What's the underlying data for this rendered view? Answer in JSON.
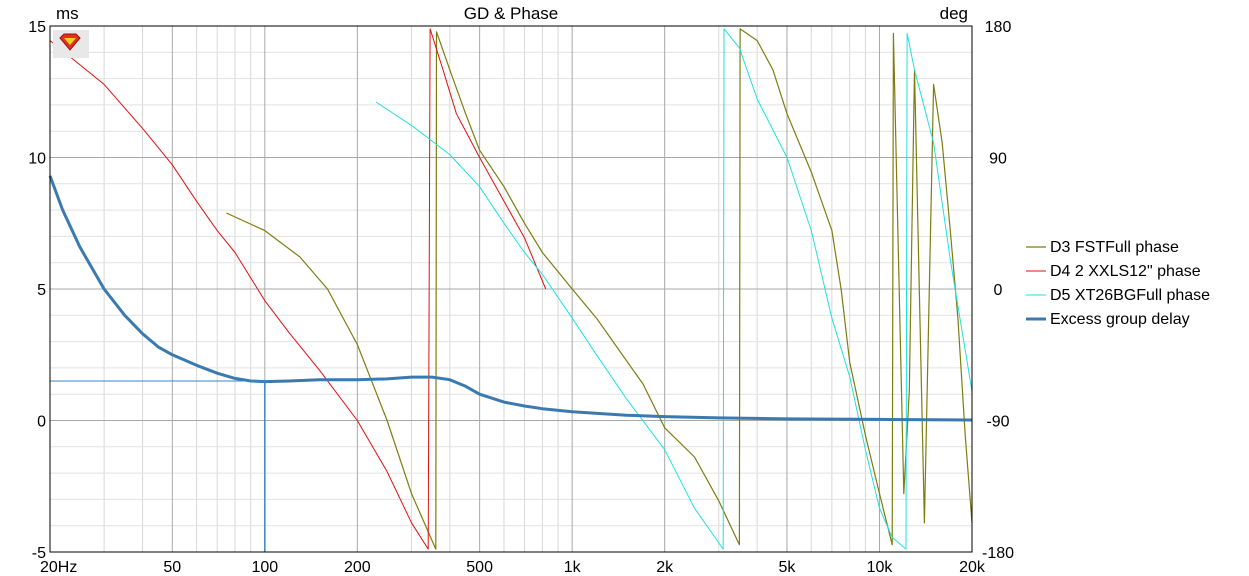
{
  "chart_data": {
    "type": "line",
    "title": "GD & Phase",
    "y_left_unit": "ms",
    "y_right_unit": "deg",
    "x_scale": "log",
    "xlim": [
      20,
      20000
    ],
    "ylim_left": [
      -5,
      15
    ],
    "ylim_right": [
      -180,
      180
    ],
    "grid": true,
    "legend_position": "right",
    "x_ticks": [
      {
        "value": 20,
        "label": "20Hz"
      },
      {
        "value": 50,
        "label": "50"
      },
      {
        "value": 100,
        "label": "100"
      },
      {
        "value": 200,
        "label": "200"
      },
      {
        "value": 500,
        "label": "500"
      },
      {
        "value": 1000,
        "label": "1k"
      },
      {
        "value": 2000,
        "label": "2k"
      },
      {
        "value": 5000,
        "label": "5k"
      },
      {
        "value": 10000,
        "label": "10k"
      },
      {
        "value": 20000,
        "label": "20k"
      }
    ],
    "y_left_ticks": [
      {
        "value": 15,
        "label": "15"
      },
      {
        "value": 10,
        "label": "10"
      },
      {
        "value": 5,
        "label": "5"
      },
      {
        "value": 0,
        "label": "0"
      },
      {
        "value": -5,
        "label": "-5"
      }
    ],
    "y_right_ticks": [
      {
        "value": 180,
        "label": "180"
      },
      {
        "value": 90,
        "label": "90"
      },
      {
        "value": 0,
        "label": "0"
      },
      {
        "value": -90,
        "label": "-90"
      },
      {
        "value": -180,
        "label": "-180"
      }
    ],
    "cursor": {
      "x": 100,
      "y": 1.5
    },
    "series": [
      {
        "name": "D3 FSTFull phase",
        "color": "#7d7d10",
        "axis": "right",
        "width": 1.2,
        "points": [
          [
            75,
            52
          ],
          [
            100,
            40
          ],
          [
            130,
            22
          ],
          [
            160,
            0
          ],
          [
            200,
            -38
          ],
          [
            250,
            -90
          ],
          [
            300,
            -140
          ],
          [
            360,
            -178
          ],
          [
            362,
            176
          ],
          [
            400,
            150
          ],
          [
            450,
            120
          ],
          [
            500,
            95
          ],
          [
            600,
            70
          ],
          [
            700,
            45
          ],
          [
            800,
            25
          ],
          [
            1000,
            0
          ],
          [
            1200,
            -20
          ],
          [
            1400,
            -40
          ],
          [
            1700,
            -65
          ],
          [
            2000,
            -95
          ],
          [
            2500,
            -115
          ],
          [
            3000,
            -145
          ],
          [
            3500,
            -175
          ],
          [
            3520,
            178
          ],
          [
            4000,
            170
          ],
          [
            4500,
            150
          ],
          [
            5000,
            120
          ],
          [
            6000,
            80
          ],
          [
            7000,
            40
          ],
          [
            7500,
            0
          ],
          [
            8000,
            -50
          ],
          [
            9000,
            -100
          ],
          [
            10000,
            -140
          ],
          [
            11000,
            -175
          ],
          [
            11100,
            175
          ],
          [
            12000,
            -140
          ],
          [
            12500,
            -70
          ],
          [
            13000,
            150
          ],
          [
            14000,
            -160
          ],
          [
            15000,
            140
          ],
          [
            16000,
            100
          ],
          [
            17000,
            40
          ],
          [
            18000,
            -20
          ],
          [
            19000,
            -100
          ],
          [
            20000,
            -160
          ]
        ]
      },
      {
        "name": "D4 2 XXLS12\" phase",
        "color": "#e01010",
        "axis": "right",
        "width": 1.0,
        "points": [
          [
            20,
            170
          ],
          [
            30,
            140
          ],
          [
            40,
            110
          ],
          [
            50,
            85
          ],
          [
            60,
            60
          ],
          [
            70,
            40
          ],
          [
            80,
            25
          ],
          [
            100,
            -8
          ],
          [
            120,
            -30
          ],
          [
            150,
            -55
          ],
          [
            200,
            -90
          ],
          [
            250,
            -125
          ],
          [
            300,
            -160
          ],
          [
            340,
            -178
          ],
          [
            345,
            178
          ],
          [
            380,
            150
          ],
          [
            420,
            120
          ],
          [
            500,
            90
          ],
          [
            600,
            60
          ],
          [
            700,
            35
          ],
          [
            820,
            0
          ]
        ]
      },
      {
        "name": "D5 XT26BGFull phase",
        "color": "#20e0e0",
        "axis": "right",
        "width": 1.0,
        "points": [
          [
            230,
            128
          ],
          [
            300,
            112
          ],
          [
            400,
            92
          ],
          [
            500,
            70
          ],
          [
            600,
            45
          ],
          [
            700,
            25
          ],
          [
            800,
            10
          ],
          [
            1000,
            -20
          ],
          [
            1200,
            -45
          ],
          [
            1500,
            -75
          ],
          [
            2000,
            -110
          ],
          [
            2500,
            -150
          ],
          [
            3100,
            -178
          ],
          [
            3120,
            178
          ],
          [
            3500,
            165
          ],
          [
            4000,
            130
          ],
          [
            5000,
            90
          ],
          [
            6000,
            40
          ],
          [
            7000,
            -20
          ],
          [
            8000,
            -60
          ],
          [
            9000,
            -110
          ],
          [
            10000,
            -150
          ],
          [
            11000,
            -170
          ],
          [
            12200,
            -178
          ],
          [
            12300,
            175
          ],
          [
            13000,
            150
          ],
          [
            15000,
            100
          ],
          [
            17000,
            20
          ],
          [
            20000,
            -70
          ]
        ]
      },
      {
        "name": "Excess group delay",
        "color": "#3a7ab0",
        "axis": "left",
        "width": 3.0,
        "points": [
          [
            20,
            9.3
          ],
          [
            22,
            8.0
          ],
          [
            25,
            6.6
          ],
          [
            30,
            5.0
          ],
          [
            35,
            4.0
          ],
          [
            40,
            3.3
          ],
          [
            45,
            2.8
          ],
          [
            50,
            2.5
          ],
          [
            60,
            2.1
          ],
          [
            70,
            1.8
          ],
          [
            80,
            1.6
          ],
          [
            90,
            1.5
          ],
          [
            100,
            1.48
          ],
          [
            120,
            1.5
          ],
          [
            150,
            1.55
          ],
          [
            200,
            1.55
          ],
          [
            250,
            1.58
          ],
          [
            300,
            1.65
          ],
          [
            350,
            1.65
          ],
          [
            400,
            1.55
          ],
          [
            450,
            1.3
          ],
          [
            500,
            1.0
          ],
          [
            600,
            0.7
          ],
          [
            700,
            0.55
          ],
          [
            800,
            0.45
          ],
          [
            1000,
            0.33
          ],
          [
            1500,
            0.2
          ],
          [
            2000,
            0.15
          ],
          [
            3000,
            0.1
          ],
          [
            5000,
            0.06
          ],
          [
            10000,
            0.04
          ],
          [
            20000,
            0.02
          ]
        ]
      }
    ]
  }
}
